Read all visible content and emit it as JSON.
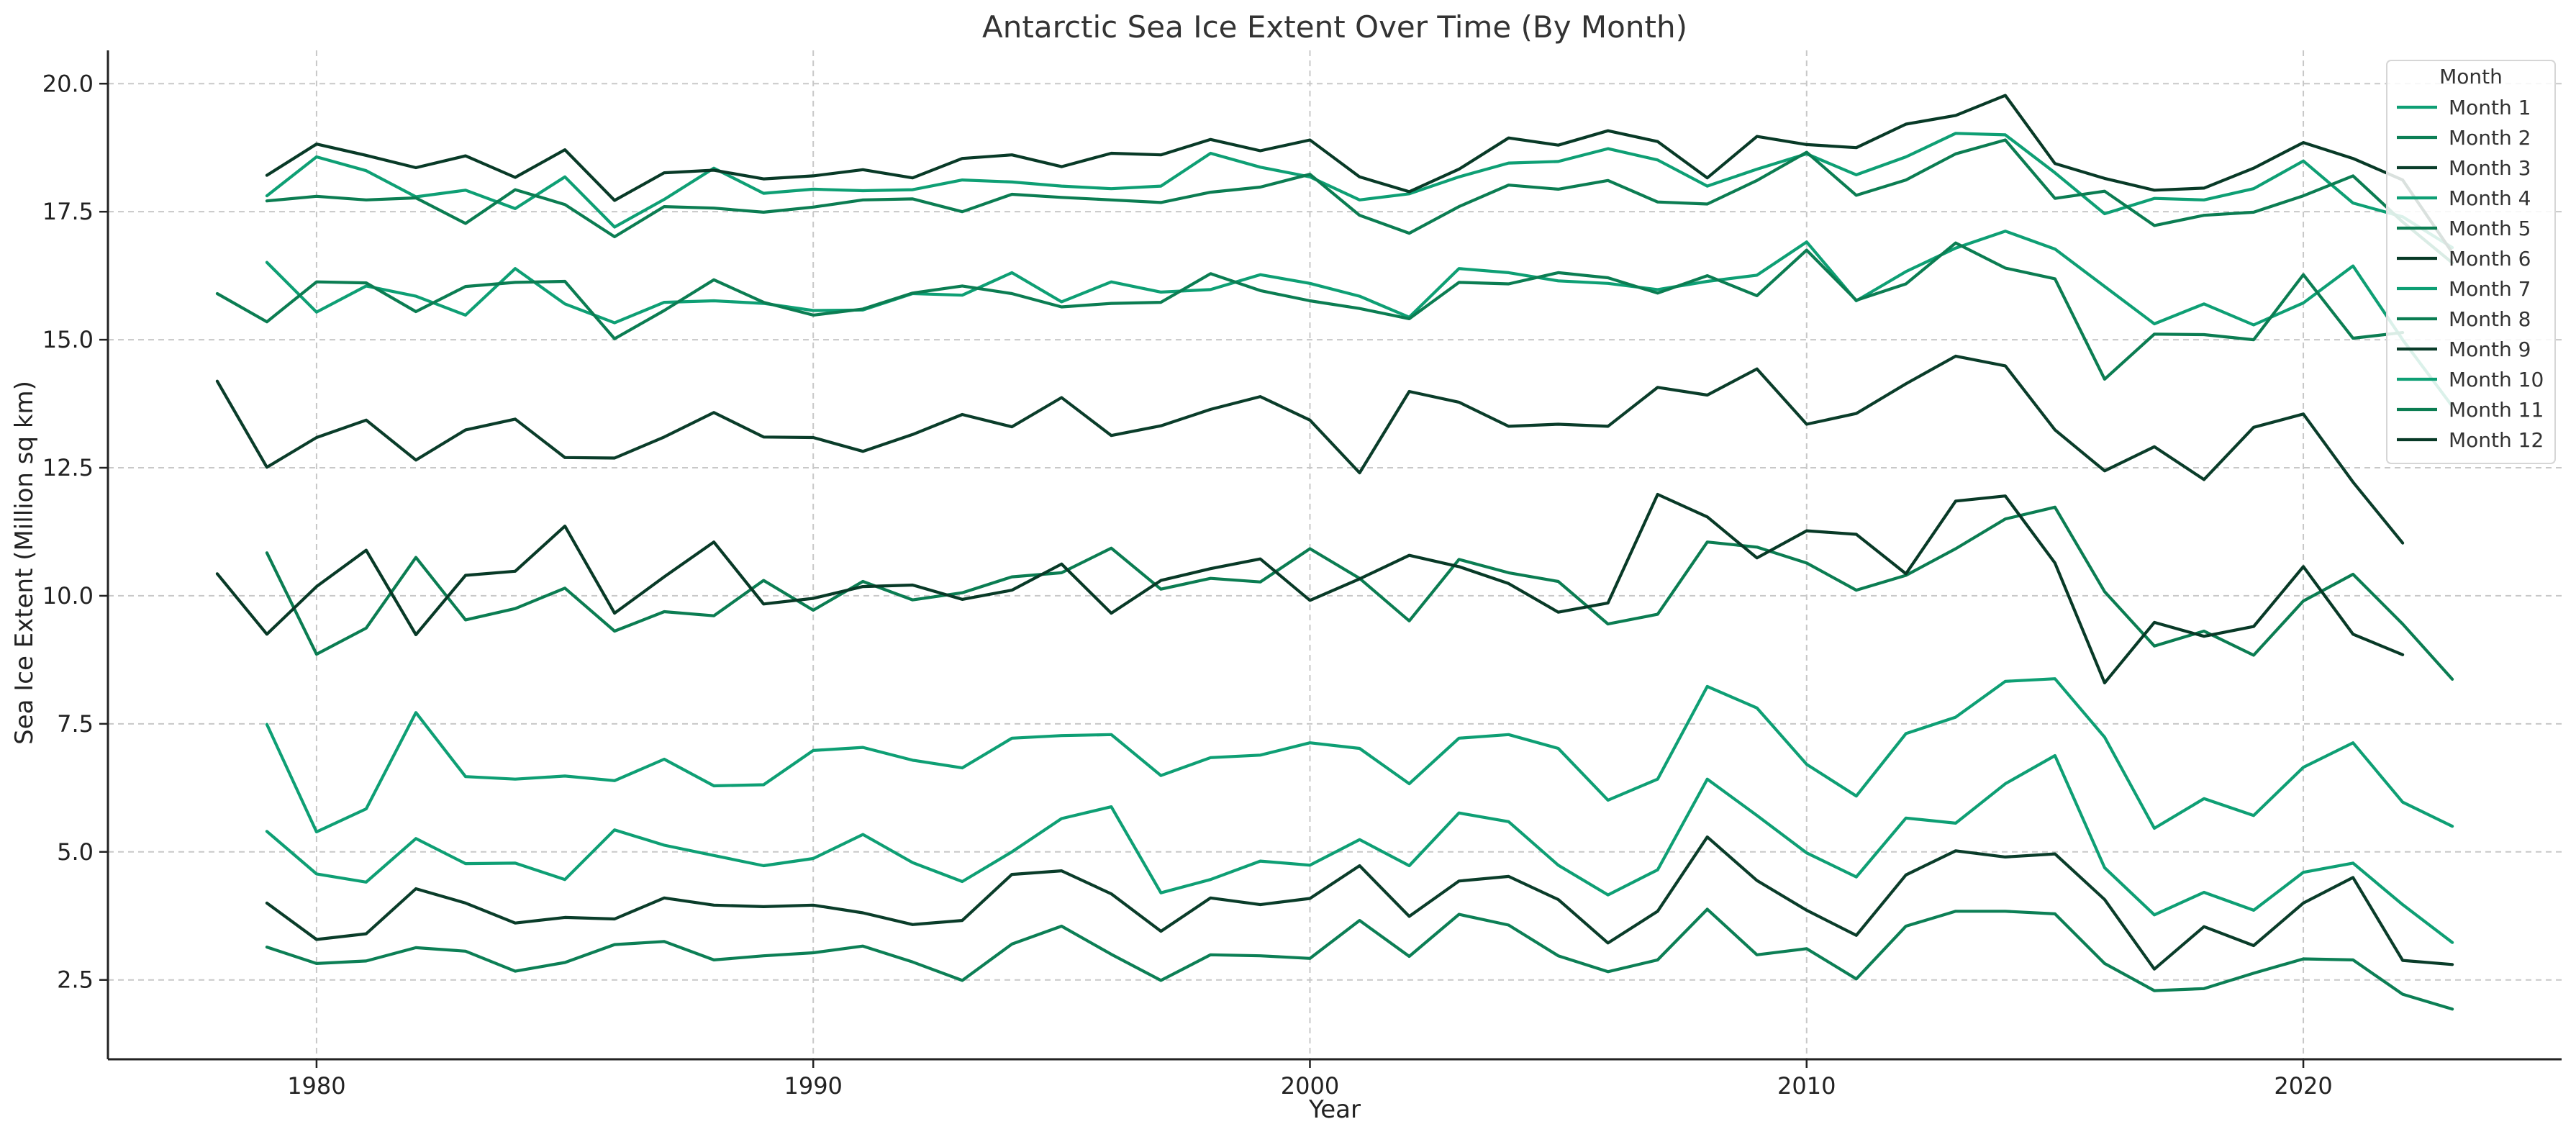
{
  "chart_data": {
    "type": "line",
    "title": "Antarctic Sea Ice Extent Over Time (By Month)",
    "xlabel": "Year",
    "ylabel": "Sea Ice Extent (Million sq km)",
    "xlim": [
      1975.8,
      2025.2
    ],
    "ylim": [
      0.95,
      20.65
    ],
    "xticks": [
      1980,
      1990,
      2000,
      2010,
      2020
    ],
    "yticks": [
      2.5,
      5.0,
      7.5,
      10.0,
      12.5,
      15.0,
      17.5,
      20.0
    ],
    "xtick_labels": [
      "1980",
      "1990",
      "2000",
      "2010",
      "2020"
    ],
    "ytick_labels": [
      "2.5",
      "5.0",
      "7.5",
      "10.0",
      "12.5",
      "15.0",
      "17.5",
      "20.0"
    ],
    "grid": true,
    "legend": {
      "title": "Month",
      "placement": "top-right"
    },
    "series": [
      {
        "name": "Month 1",
        "color": "#0e9f74",
        "x_start": 1979,
        "values": [
          5.4,
          4.57,
          4.41,
          5.26,
          4.77,
          4.78,
          4.46,
          5.43,
          5.13,
          4.93,
          4.73,
          4.87,
          5.34,
          4.79,
          4.42,
          5.0,
          5.65,
          5.88,
          4.2,
          4.46,
          4.82,
          4.74,
          5.24,
          4.73,
          5.76,
          5.59,
          4.74,
          4.16,
          4.65,
          6.42,
          5.71,
          4.98,
          4.51,
          5.66,
          5.56,
          6.33,
          6.88,
          4.69,
          3.77,
          4.21,
          3.86,
          4.6,
          4.78,
          3.97,
          3.23
        ]
      },
      {
        "name": "Month 2",
        "color": "#0c7f55",
        "x_start": 1979,
        "values": [
          3.14,
          2.82,
          2.87,
          3.13,
          3.06,
          2.67,
          2.84,
          3.19,
          3.25,
          2.89,
          2.97,
          3.03,
          3.16,
          2.85,
          2.49,
          3.2,
          3.55,
          3.0,
          2.49,
          2.99,
          2.97,
          2.92,
          3.66,
          2.96,
          3.78,
          3.57,
          2.97,
          2.66,
          2.89,
          3.88,
          2.99,
          3.11,
          2.52,
          3.55,
          3.84,
          3.84,
          3.79,
          2.82,
          2.29,
          2.33,
          2.63,
          2.91,
          2.89,
          2.22,
          1.93
        ]
      },
      {
        "name": "Month 3",
        "color": "#0a3d2a",
        "x_start": 1979,
        "values": [
          4.0,
          3.29,
          3.4,
          4.28,
          4.0,
          3.61,
          3.72,
          3.69,
          4.1,
          3.96,
          3.93,
          3.96,
          3.81,
          3.58,
          3.66,
          4.56,
          4.63,
          4.18,
          3.45,
          4.1,
          3.97,
          4.09,
          4.73,
          3.74,
          4.43,
          4.52,
          4.07,
          3.22,
          3.84,
          5.29,
          4.44,
          3.86,
          3.37,
          4.55,
          5.02,
          4.9,
          4.96,
          4.07,
          2.71,
          3.54,
          3.17,
          4.0,
          4.5,
          2.88,
          2.8
        ]
      },
      {
        "name": "Month 4",
        "color": "#0e9f74",
        "x_start": 1979,
        "values": [
          7.49,
          5.39,
          5.84,
          7.72,
          6.47,
          6.42,
          6.48,
          6.39,
          6.81,
          6.29,
          6.31,
          6.98,
          7.04,
          6.79,
          6.64,
          7.22,
          7.27,
          7.29,
          6.49,
          6.84,
          6.89,
          7.13,
          7.02,
          6.33,
          7.22,
          7.29,
          7.02,
          6.01,
          6.42,
          8.23,
          7.81,
          6.71,
          6.09,
          7.31,
          7.63,
          8.33,
          8.38,
          7.24,
          5.46,
          6.04,
          5.71,
          6.65,
          7.13,
          5.97,
          5.5
        ]
      },
      {
        "name": "Month 5",
        "color": "#0b7d52",
        "x_start": 1979,
        "values": [
          10.84,
          8.86,
          9.37,
          10.75,
          9.53,
          9.75,
          10.15,
          9.31,
          9.69,
          9.61,
          10.3,
          9.72,
          10.28,
          9.92,
          10.06,
          10.37,
          10.45,
          10.93,
          10.13,
          10.34,
          10.27,
          10.92,
          10.34,
          9.51,
          10.71,
          10.45,
          10.28,
          9.45,
          9.64,
          11.05,
          10.95,
          10.64,
          10.11,
          10.4,
          10.92,
          11.5,
          11.73,
          10.08,
          9.02,
          9.31,
          8.84,
          9.9,
          10.42,
          9.45,
          8.37
        ]
      },
      {
        "name": "Month 6",
        "color": "#083a27",
        "x_start": 1978,
        "values": [
          10.43,
          9.25,
          10.18,
          10.89,
          9.24,
          10.4,
          10.48,
          11.36,
          9.66,
          10.37,
          11.05,
          9.84,
          9.95,
          10.18,
          10.21,
          9.93,
          10.11,
          10.62,
          9.66,
          10.3,
          10.53,
          10.72,
          9.91,
          10.33,
          10.79,
          10.57,
          10.24,
          9.68,
          9.86,
          11.98,
          11.54,
          10.74,
          11.27,
          11.2,
          10.43,
          11.85,
          11.95,
          10.64,
          8.3,
          9.48,
          9.21,
          9.4,
          10.57,
          9.25,
          8.85
        ]
      },
      {
        "name": "Month 7",
        "color": "#0e9f74",
        "x_start": 1979,
        "values": [
          16.51,
          15.54,
          16.05,
          15.85,
          15.48,
          16.39,
          15.7,
          15.33,
          15.73,
          15.76,
          15.71,
          15.57,
          15.58,
          15.9,
          15.87,
          16.31,
          15.74,
          16.13,
          15.93,
          15.98,
          16.27,
          16.1,
          15.85,
          15.44,
          16.39,
          16.31,
          16.15,
          16.1,
          15.98,
          16.14,
          16.26,
          16.91,
          15.76,
          16.33,
          16.79,
          17.12,
          16.77,
          16.04,
          15.31,
          15.7,
          15.29,
          15.72,
          16.44,
          15.0,
          13.7
        ]
      },
      {
        "name": "Month 8",
        "color": "#0b7d52",
        "x_start": 1978,
        "values": [
          15.9,
          15.35,
          16.13,
          16.11,
          15.55,
          16.04,
          16.12,
          16.14,
          15.02,
          15.57,
          16.17,
          15.73,
          15.48,
          15.6,
          15.91,
          16.05,
          15.9,
          15.64,
          15.71,
          15.73,
          16.29,
          15.96,
          15.76,
          15.61,
          15.41,
          16.12,
          16.09,
          16.31,
          16.21,
          15.91,
          16.25,
          15.86,
          16.75,
          15.77,
          16.09,
          16.89,
          16.4,
          16.19,
          14.23,
          15.11,
          15.1,
          15.0,
          16.27,
          15.03,
          15.14
        ]
      },
      {
        "name": "Month 9",
        "color": "#0a3d2a",
        "x_start": 1978,
        "values": [
          14.19,
          12.51,
          13.09,
          13.43,
          12.65,
          13.24,
          13.45,
          12.7,
          12.69,
          13.1,
          13.58,
          13.1,
          13.09,
          12.82,
          13.15,
          13.54,
          13.3,
          13.87,
          13.13,
          13.32,
          13.64,
          13.89,
          13.43,
          12.4,
          13.99,
          13.78,
          13.31,
          13.35,
          13.31,
          14.07,
          13.92,
          14.43,
          13.35,
          13.56,
          14.14,
          14.68,
          14.49,
          13.24,
          12.44,
          12.91,
          12.27,
          13.29,
          13.55,
          12.22,
          11.03
        ]
      },
      {
        "name": "Month 10",
        "color": "#0e9f74",
        "x_start": 1979,
        "values": [
          17.81,
          18.57,
          18.3,
          17.79,
          17.92,
          17.56,
          18.18,
          17.2,
          17.74,
          18.35,
          17.86,
          17.94,
          17.91,
          17.93,
          18.12,
          18.08,
          18.0,
          17.95,
          18.0,
          18.64,
          18.37,
          18.18,
          17.73,
          17.85,
          18.18,
          18.45,
          18.48,
          18.73,
          18.51,
          18.0,
          18.33,
          18.63,
          18.22,
          18.57,
          19.03,
          19.0,
          18.26,
          17.46,
          17.76,
          17.73,
          17.95,
          18.49,
          17.67,
          17.4,
          16.8
        ]
      },
      {
        "name": "Month 11",
        "color": "#0b7d52",
        "x_start": 1979,
        "values": [
          17.71,
          17.8,
          17.73,
          17.77,
          17.27,
          17.93,
          17.64,
          17.01,
          17.6,
          17.57,
          17.49,
          17.59,
          17.73,
          17.75,
          17.5,
          17.84,
          17.78,
          17.73,
          17.68,
          17.88,
          17.98,
          18.23,
          17.43,
          17.08,
          17.6,
          18.02,
          17.94,
          18.11,
          17.69,
          17.65,
          18.11,
          18.66,
          17.82,
          18.12,
          18.63,
          18.9,
          17.76,
          17.9,
          17.23,
          17.43,
          17.49,
          17.81,
          18.2,
          17.3,
          16.5
        ]
      },
      {
        "name": "Month 12",
        "color": "#083a27",
        "x_start": 1979,
        "values": [
          18.21,
          18.82,
          18.6,
          18.36,
          18.59,
          18.17,
          18.71,
          17.72,
          18.26,
          18.31,
          18.14,
          18.2,
          18.32,
          18.16,
          18.54,
          18.61,
          18.38,
          18.64,
          18.61,
          18.91,
          18.69,
          18.9,
          18.18,
          17.89,
          18.33,
          18.94,
          18.8,
          19.08,
          18.87,
          18.16,
          18.97,
          18.81,
          18.75,
          19.21,
          19.38,
          19.77,
          18.44,
          18.15,
          17.92,
          17.96,
          18.35,
          18.85,
          18.54,
          18.12,
          16.7
        ]
      }
    ]
  }
}
